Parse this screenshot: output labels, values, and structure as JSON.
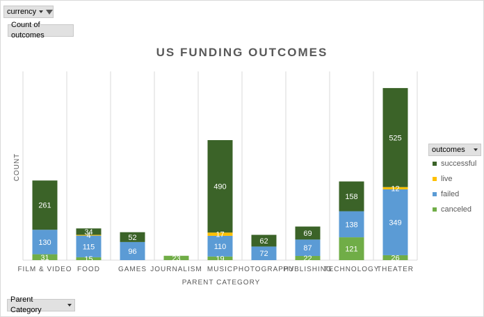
{
  "filters": {
    "currency_label": "currency",
    "count_label": "Count of outcomes",
    "parent_category_label": "Parent Category",
    "legend_label": "outcomes"
  },
  "colors": {
    "successful": "#3b6328",
    "live": "#ffc000",
    "failed": "#5b9bd5",
    "canceled": "#70ad47",
    "grid": "#d9d9d9",
    "text": "#595959"
  },
  "chart_data": {
    "type": "bar",
    "stacked": true,
    "title": "US FUNDING OUTCOMES",
    "xlabel": "PARENT CATEGORY",
    "ylabel": "COUNT",
    "categories": [
      "FILM & VIDEO",
      "FOOD",
      "GAMES",
      "JOURNALISM",
      "MUSIC",
      "PHOTOGRAPHY",
      "PUBLISHING",
      "TECHNOLOGY",
      "THEATER"
    ],
    "series": [
      {
        "name": "canceled",
        "values": [
          31,
          15,
          0,
          23,
          19,
          0,
          22,
          121,
          26
        ]
      },
      {
        "name": "failed",
        "values": [
          130,
          115,
          96,
          0,
          110,
          72,
          87,
          138,
          349
        ]
      },
      {
        "name": "live",
        "values": [
          0,
          4,
          0,
          0,
          17,
          0,
          0,
          0,
          12
        ]
      },
      {
        "name": "successful",
        "values": [
          261,
          34,
          52,
          0,
          490,
          62,
          69,
          158,
          525
        ]
      }
    ],
    "legend_order": [
      "successful",
      "live",
      "failed",
      "canceled"
    ],
    "ylim": [
      0,
      1000
    ],
    "grid": "vertical",
    "legend": "right"
  }
}
